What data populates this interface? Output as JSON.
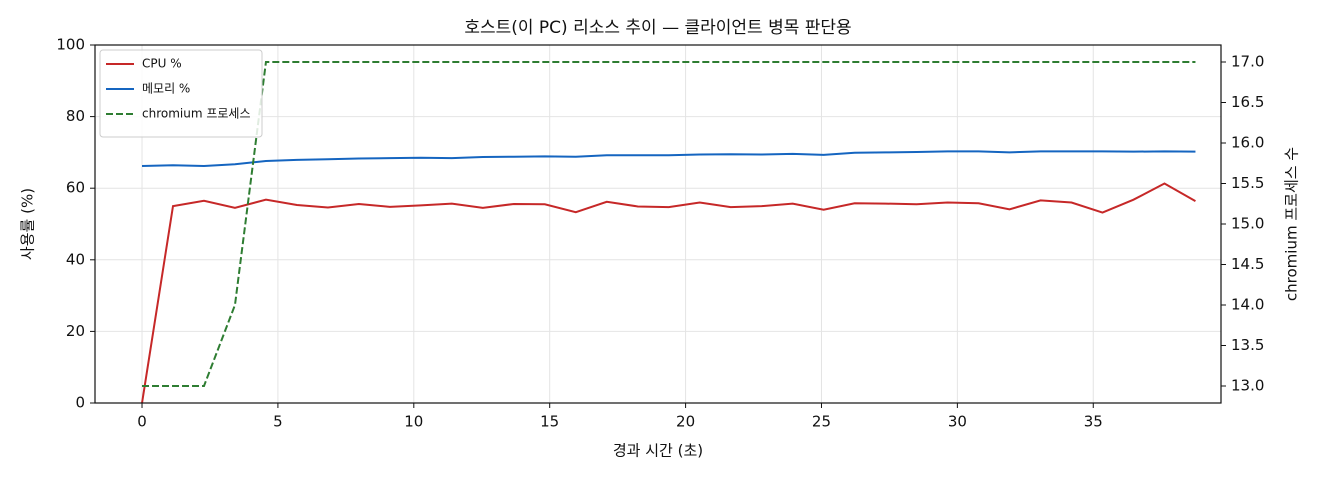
{
  "chart_data": {
    "type": "line",
    "title": "호스트(이 PC) 리소스 추이 — 클라이언트 병목 판단용",
    "x_label": "경과 시간 (초)",
    "y_label": "사용률 (%)",
    "y2_label": "chromium 프로세스 수",
    "x": [
      0,
      1.14,
      2.28,
      3.42,
      4.56,
      5.7,
      6.84,
      7.98,
      9.12,
      10.26,
      11.4,
      12.54,
      13.68,
      14.82,
      15.96,
      17.1,
      18.24,
      19.38,
      20.52,
      21.66,
      22.8,
      23.94,
      25.08,
      26.22,
      27.36,
      28.5,
      29.64,
      30.78,
      31.92,
      33.06,
      34.2,
      35.34,
      36.48,
      37.62,
      38.76
    ],
    "series": [
      {
        "name": "CPU %",
        "color": "#c62828",
        "linestyle": "solid",
        "values": [
          0,
          55,
          56.5,
          54.5,
          56.8,
          55.3,
          54.6,
          55.6,
          54.8,
          55.2,
          55.7,
          54.5,
          55.6,
          55.5,
          53.3,
          56.2,
          54.9,
          54.7,
          56.0,
          54.7,
          55.0,
          55.7,
          54.0,
          55.8,
          55.7,
          55.5,
          56.0,
          55.8,
          54.1,
          56.6,
          56.0,
          53.2,
          56.8,
          61.3,
          56.4
        ]
      },
      {
        "name": "메모리 %",
        "color": "#1565c0",
        "linestyle": "solid",
        "values": [
          66.2,
          66.4,
          66.2,
          66.7,
          67.6,
          67.9,
          68.1,
          68.3,
          68.4,
          68.5,
          68.4,
          68.7,
          68.8,
          68.9,
          68.8,
          69.2,
          69.2,
          69.2,
          69.4,
          69.5,
          69.4,
          69.6,
          69.3,
          69.9,
          70.0,
          70.1,
          70.3,
          70.3,
          70.0,
          70.3,
          70.3,
          70.3,
          70.2,
          70.3,
          70.2
        ]
      },
      {
        "name": "chromium 프로세스",
        "color": "#2e7d32",
        "linestyle": "dashed",
        "axis": "y2",
        "values": [
          13,
          13,
          13,
          14,
          17,
          17,
          17,
          17,
          17,
          17,
          17,
          17,
          17,
          17,
          17,
          17,
          17,
          17,
          17,
          17,
          17,
          17,
          17,
          17,
          17,
          17,
          17,
          17,
          17,
          17,
          17,
          17,
          17,
          17,
          17
        ]
      }
    ],
    "xlim": [
      -1.73,
      39.7
    ],
    "xticks": [
      0,
      5,
      10,
      15,
      20,
      25,
      30,
      35
    ],
    "ylim": [
      0,
      100
    ],
    "yticks": [
      0,
      20,
      40,
      60,
      80,
      100
    ],
    "y2lim": [
      12.79,
      17.21
    ],
    "y2ticks": [
      {
        "value": 13,
        "label": "13.0"
      },
      {
        "value": 13.5,
        "label": "13.5"
      },
      {
        "value": 14,
        "label": "14.0"
      },
      {
        "value": 14.5,
        "label": "14.5"
      },
      {
        "value": 15,
        "label": "15.0"
      },
      {
        "value": 15.5,
        "label": "15.5"
      },
      {
        "value": 16,
        "label": "16.0"
      },
      {
        "value": 16.5,
        "label": "16.5"
      },
      {
        "value": 17,
        "label": "17.0"
      }
    ],
    "grid": true,
    "legend": "upper left"
  }
}
